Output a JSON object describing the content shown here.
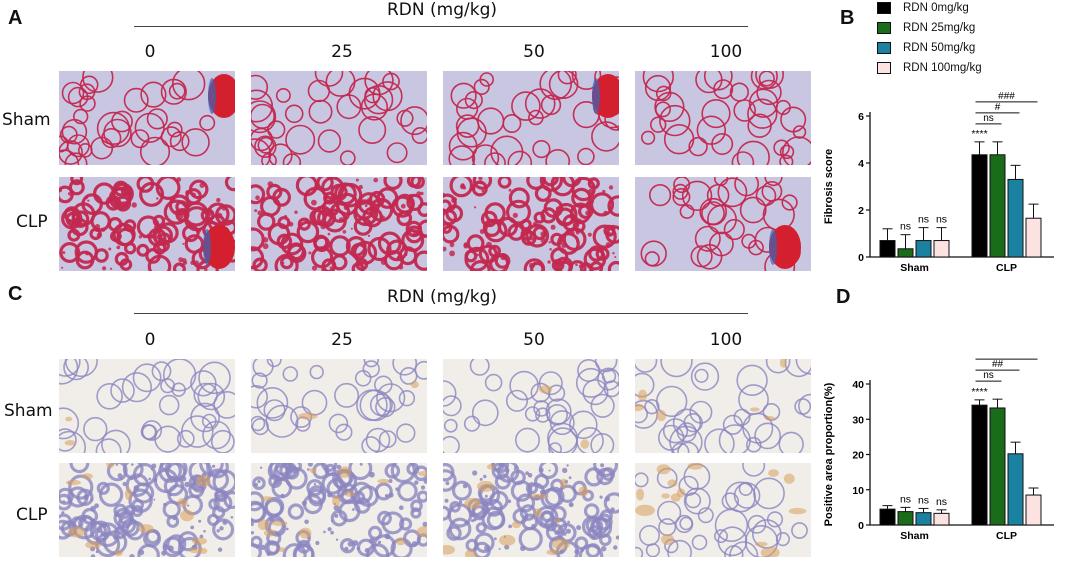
{
  "panels": {
    "A": "A",
    "B": "B",
    "C": "C",
    "D": "D"
  },
  "histology": {
    "header": "RDN (mg/kg)",
    "doses": [
      "0",
      "25",
      "50",
      "100"
    ],
    "rows": [
      "Sham",
      "CLP"
    ],
    "colors": {
      "masson_bg": "#c9c6e2",
      "masson_tissue": "#c3284f",
      "masson_vessel": "#d31f2e",
      "masson_collagen": "#3a64b8",
      "ihc_bg": "#f1eee9",
      "ihc_tissue": "#8b86c0",
      "ihc_positive": "#d7a15c"
    }
  },
  "legend": {
    "items": [
      {
        "label": "RDN 0mg/kg",
        "color": "#000000"
      },
      {
        "label": "RDN 25mg/kg",
        "color": "#1a6b1a"
      },
      {
        "label": "RDN 50mg/kg",
        "color": "#1a82a0"
      },
      {
        "label": "RDN 100mg/kg",
        "color": "#fde2e2"
      }
    ]
  },
  "chart_data": [
    {
      "panel": "B",
      "type": "bar",
      "ylabel": "Fibrosis score",
      "ylim": [
        0,
        6
      ],
      "yticks": [
        0,
        2,
        4,
        6
      ],
      "categories": [
        "Sham",
        "CLP"
      ],
      "series": [
        {
          "name": "RDN 0mg/kg",
          "color": "#000000",
          "values": [
            0.7,
            4.35
          ],
          "errors": [
            0.5,
            0.55
          ]
        },
        {
          "name": "RDN 25mg/kg",
          "color": "#1a6b1a",
          "values": [
            0.35,
            4.35
          ],
          "errors": [
            0.6,
            0.55
          ]
        },
        {
          "name": "RDN 50mg/kg",
          "color": "#1a82a0",
          "values": [
            0.7,
            3.3
          ],
          "errors": [
            0.55,
            0.6
          ]
        },
        {
          "name": "RDN 100mg/kg",
          "color": "#fde2e2",
          "values": [
            0.7,
            1.65
          ],
          "errors": [
            0.55,
            0.6
          ]
        }
      ],
      "annotations": {
        "sham_labels": [
          "",
          "ns",
          "ns",
          "ns"
        ],
        "clp_first": "****",
        "brackets": [
          {
            "from": 0,
            "to": 1,
            "label": "ns"
          },
          {
            "from": 0,
            "to": 2,
            "label": "#"
          },
          {
            "from": 0,
            "to": 3,
            "label": "###"
          }
        ]
      }
    },
    {
      "panel": "D",
      "type": "bar",
      "ylabel": "Positive area proportion(%)",
      "ylim": [
        0,
        40
      ],
      "yticks": [
        0,
        10,
        20,
        30,
        40
      ],
      "categories": [
        "Sham",
        "CLP"
      ],
      "series": [
        {
          "name": "RDN 0mg/kg",
          "color": "#000000",
          "values": [
            4.5,
            34
          ],
          "errors": [
            1.0,
            1.5
          ]
        },
        {
          "name": "RDN 25mg/kg",
          "color": "#1a6b1a",
          "values": [
            3.8,
            33.2
          ],
          "errors": [
            1.2,
            2.5
          ]
        },
        {
          "name": "RDN 50mg/kg",
          "color": "#1a82a0",
          "values": [
            3.5,
            20.2
          ],
          "errors": [
            1.2,
            3.3
          ]
        },
        {
          "name": "RDN 100mg/kg",
          "color": "#fde2e2",
          "values": [
            3.3,
            8.5
          ],
          "errors": [
            1.0,
            2.0
          ]
        }
      ],
      "annotations": {
        "sham_labels": [
          "",
          "ns",
          "ns",
          "ns"
        ],
        "clp_first": "****",
        "brackets": [
          {
            "from": 0,
            "to": 1,
            "label": "ns"
          },
          {
            "from": 0,
            "to": 2,
            "label": "##"
          },
          {
            "from": 0,
            "to": 3,
            "label": "###"
          }
        ]
      }
    }
  ]
}
